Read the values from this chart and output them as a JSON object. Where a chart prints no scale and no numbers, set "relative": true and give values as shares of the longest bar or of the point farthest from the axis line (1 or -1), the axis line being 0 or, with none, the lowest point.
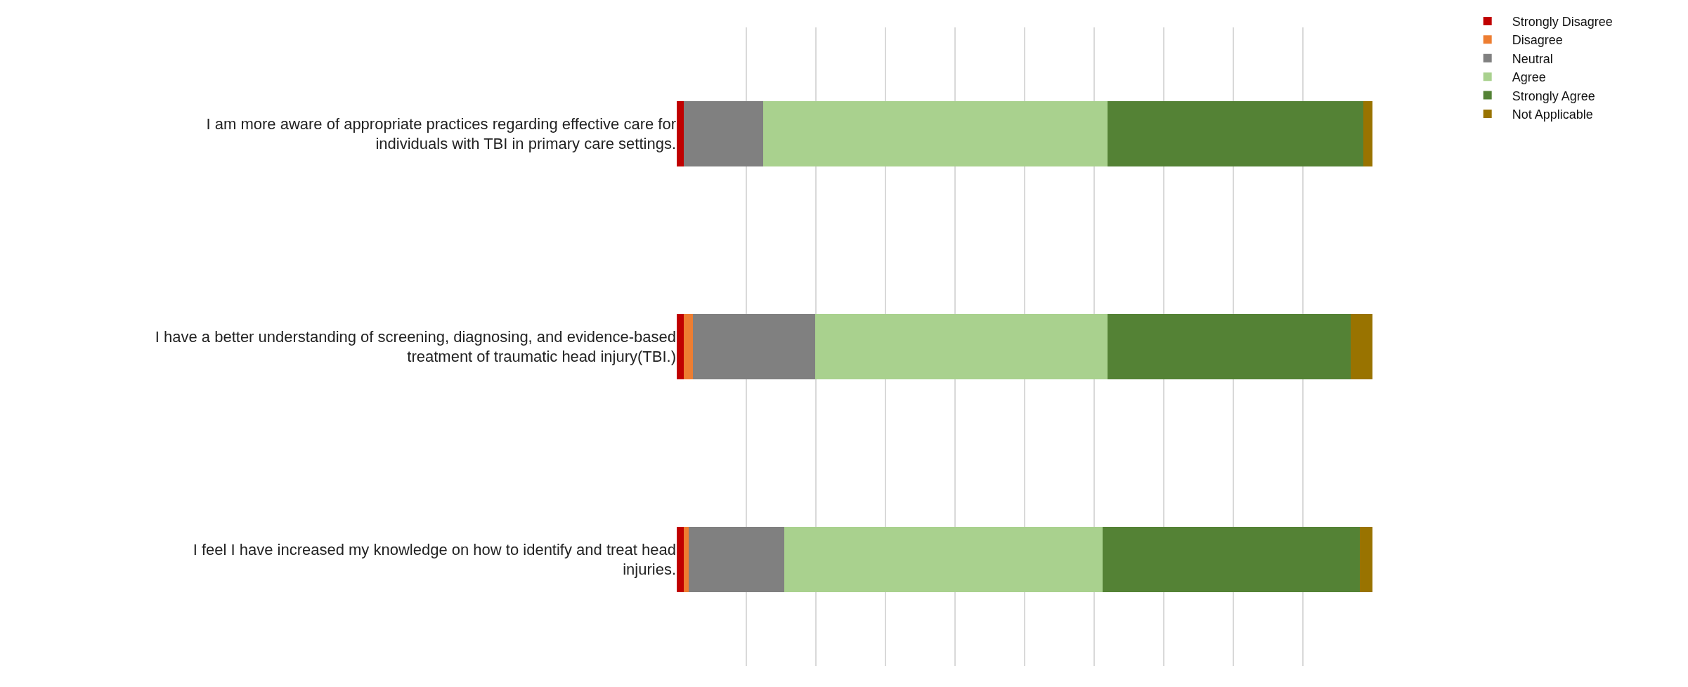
{
  "chart_data": {
    "type": "bar",
    "orientation": "horizontal",
    "stacked": true,
    "relative": true,
    "grid": "x",
    "legend": "top right",
    "categories": [
      "I am more aware of appropriate practices regarding effective care for individuals with TBI in primary care settings.",
      "I have a better understanding of screening, diagnosing, and evidence-based treatment of traumatic head injury(TBI.)",
      "I feel I have increased my knowledge on how to identify and treat head injuries."
    ],
    "series": [
      {
        "name": "Strongly Disagree",
        "color": "#c00000",
        "values": [
          0.01,
          0.01,
          0.01
        ]
      },
      {
        "name": "Disagree",
        "color": "#ed7d31",
        "values": [
          0,
          0.013,
          0.007
        ]
      },
      {
        "name": "Neutral",
        "color": "#808080",
        "values": [
          0.114,
          0.176,
          0.138
        ]
      },
      {
        "name": "Agree",
        "color": "#a9d18e",
        "values": [
          0.495,
          0.42,
          0.457
        ]
      },
      {
        "name": "Strongly Agree",
        "color": "#548235",
        "values": [
          0.368,
          0.35,
          0.37
        ]
      },
      {
        "name": "Not Applicable",
        "color": "#997300",
        "values": [
          0.013,
          0.031,
          0.018
        ]
      }
    ]
  }
}
